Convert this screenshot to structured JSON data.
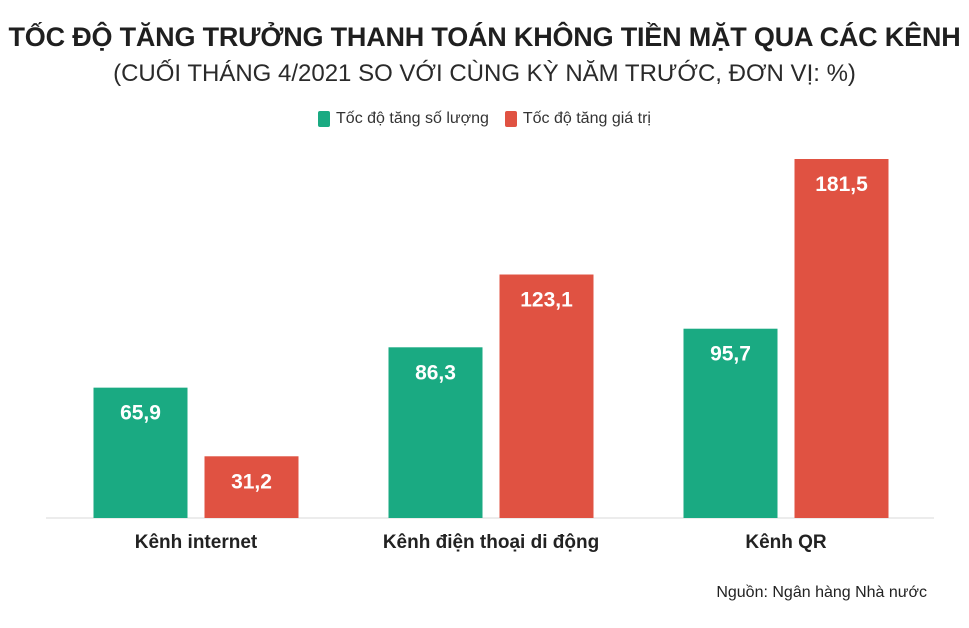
{
  "chart_data": {
    "type": "bar",
    "title": "TỐC ĐỘ TĂNG TRƯỞNG THANH TOÁN KHÔNG TIỀN MẶT QUA CÁC KÊNH",
    "subtitle": "(CUỐI THÁNG 4/2021 SO VỚI CÙNG KỲ NĂM TRƯỚC, ĐƠN VỊ: %)",
    "categories": [
      "Kênh internet",
      "Kênh điện thoại di động",
      "Kênh QR"
    ],
    "series": [
      {
        "name": "Tốc độ tăng số lượng",
        "color": "#1aaa82",
        "values": [
          65.9,
          86.3,
          95.7
        ],
        "labels": [
          "65,9",
          "86,3",
          "95,7"
        ]
      },
      {
        "name": "Tốc độ tăng giá trị",
        "color": "#e05242",
        "values": [
          31.2,
          123.1,
          181.5
        ],
        "labels": [
          "31,2",
          "123,1",
          "181,5"
        ]
      }
    ],
    "ylim": [
      0,
      181.5
    ],
    "grid": false,
    "legend": "top-center",
    "source": "Nguồn: Ngân hàng Nhà nước"
  }
}
